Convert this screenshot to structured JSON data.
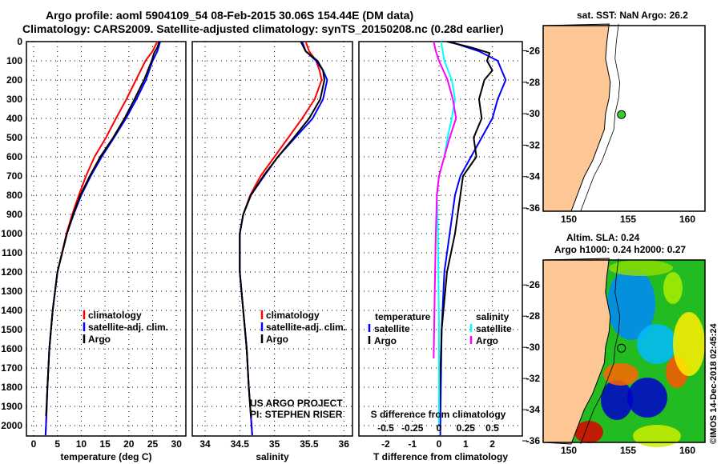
{
  "title": "Argo profile: aoml 5904109_54 08-Feb-2015 30.06S 154.44E (DM data)",
  "subtitle": "Climatology: CARS2009. Satellite-adjusted climatology: synTS_20150208.nc (0.28d earlier)",
  "colors": {
    "clim": "#ff0000",
    "sat": "#0000ff",
    "argo": "#000000",
    "s_sat": "#00ffff",
    "s_argo": "#ff00ff",
    "land": "#fdc896",
    "dot": "#33cc33"
  },
  "depth_ticks": [
    0,
    100,
    200,
    300,
    400,
    500,
    600,
    700,
    800,
    900,
    1000,
    1100,
    1200,
    1300,
    1400,
    1500,
    1600,
    1700,
    1800,
    1900,
    2000
  ],
  "chart_data": [
    {
      "type": "line",
      "name": "temperature",
      "xlabel": "temperature (deg C)",
      "ylabel": "depth",
      "xlim": [
        -1,
        32
      ],
      "ylim": [
        2050,
        0
      ],
      "xticks": [
        0,
        5,
        10,
        15,
        20,
        25,
        30
      ],
      "legend": [
        "climatology",
        "satellite-adj. clim.",
        "Argo"
      ],
      "series": [
        {
          "name": "climatology",
          "depth": [
            0,
            50,
            100,
            200,
            300,
            400,
            500,
            600,
            700,
            800,
            900,
            1000,
            1200,
            1400,
            1600,
            1800,
            2000,
            2050
          ],
          "values": [
            26,
            25,
            23.5,
            21.5,
            19.5,
            17.3,
            15.2,
            12.8,
            11,
            9.5,
            8.1,
            6.9,
            5,
            4,
            3.3,
            2.9,
            2.6,
            2.5
          ]
        },
        {
          "name": "satellite-adj. clim.",
          "depth": [
            0,
            50,
            100,
            200,
            300,
            400,
            500,
            600,
            700,
            800,
            900,
            1000,
            1200,
            1400,
            1600,
            1800,
            2000,
            2050
          ],
          "values": [
            26.6,
            26,
            25,
            23.6,
            21.6,
            19.4,
            16.9,
            14.3,
            12,
            10,
            8.4,
            7,
            5,
            4,
            3.3,
            2.9,
            2.6,
            2.5
          ]
        },
        {
          "name": "Argo",
          "depth": [
            0,
            30,
            60,
            100,
            150,
            200,
            300,
            400,
            500,
            600,
            700,
            800,
            900,
            1000,
            1200,
            1400,
            1600,
            1800,
            1950
          ],
          "values": [
            26.4,
            26,
            25.3,
            24.8,
            24,
            23.2,
            21.2,
            19.1,
            16.7,
            14,
            11.8,
            9.8,
            8.3,
            7,
            5,
            4,
            3.3,
            2.9,
            2.6
          ]
        }
      ]
    },
    {
      "type": "line",
      "name": "salinity",
      "xlabel": "salinity",
      "ylim": [
        2050,
        0
      ],
      "xlim": [
        33.8,
        36.1
      ],
      "xticks": [
        34,
        34.5,
        35,
        35.5,
        36
      ],
      "legend": [
        "climatology",
        "satellite-adj. clim.",
        "Argo"
      ],
      "annotation": [
        "US ARGO PROJECT",
        "PI: STEPHEN RISER"
      ],
      "series": [
        {
          "name": "climatology",
          "depth": [
            0,
            50,
            100,
            150,
            200,
            300,
            400,
            500,
            600,
            700,
            800,
            900,
            1000,
            1200,
            1400,
            1600,
            1800,
            2000,
            2050
          ],
          "values": [
            35.45,
            35.5,
            35.6,
            35.65,
            35.68,
            35.58,
            35.4,
            35.2,
            35,
            34.8,
            34.65,
            34.55,
            34.5,
            34.5,
            34.55,
            34.6,
            34.63,
            34.67,
            34.68
          ]
        },
        {
          "name": "satellite-adj. clim.",
          "depth": [
            0,
            50,
            100,
            150,
            200,
            300,
            400,
            500,
            600,
            700,
            800,
            900,
            1000,
            1200,
            1400,
            1600,
            1800,
            2000,
            2050
          ],
          "values": [
            35.4,
            35.45,
            35.6,
            35.7,
            35.76,
            35.7,
            35.55,
            35.3,
            35.05,
            34.85,
            34.66,
            34.55,
            34.5,
            34.5,
            34.55,
            34.6,
            34.63,
            34.67,
            34.68
          ]
        },
        {
          "name": "Argo",
          "depth": [
            0,
            50,
            100,
            150,
            200,
            300,
            400,
            500,
            600,
            700,
            800,
            900,
            1000,
            1200,
            1400,
            1600,
            1800,
            1950
          ],
          "values": [
            35.38,
            35.45,
            35.62,
            35.7,
            35.72,
            35.66,
            35.5,
            35.28,
            35.05,
            34.84,
            34.66,
            34.55,
            34.5,
            34.5,
            34.55,
            34.6,
            34.63,
            34.66
          ]
        }
      ]
    },
    {
      "type": "line",
      "name": "difference",
      "xlabel": "T difference from climatology",
      "xlabel2": "S difference from climatology",
      "xlim": [
        -3,
        3
      ],
      "ylim": [
        2050,
        0
      ],
      "xticks": [
        -2,
        -1,
        0,
        1,
        2
      ],
      "xticks2": [
        -0.5,
        -0.25,
        0,
        0.25,
        0.5
      ],
      "legend_t": [
        "temperature",
        "satellite",
        "Argo"
      ],
      "legend_s": [
        "salinity",
        "satellite",
        "Argo"
      ],
      "series": [
        {
          "name": "T satellite",
          "depth": [
            0,
            50,
            100,
            200,
            300,
            400,
            500,
            600,
            700,
            800,
            900,
            1000,
            1200,
            1500,
            2000,
            2050
          ],
          "values": [
            0.4,
            1.5,
            2.2,
            2.5,
            2.2,
            2.0,
            1.6,
            1.2,
            0.8,
            0.6,
            0.5,
            0.4,
            0.2,
            0.1,
            0.05,
            0.05
          ]
        },
        {
          "name": "T Argo",
          "depth": [
            0,
            30,
            60,
            100,
            150,
            200,
            300,
            400,
            500,
            600,
            700,
            800,
            900,
            1000,
            1200,
            1500,
            1950
          ],
          "values": [
            0.3,
            1.2,
            1.9,
            1.8,
            2.0,
            1.7,
            1.5,
            1.6,
            1.3,
            1.4,
            0.9,
            0.8,
            0.7,
            0.6,
            0.3,
            0.1,
            0.0
          ]
        },
        {
          "name": "S satellite",
          "depth": [
            0,
            100,
            200,
            300,
            400,
            500,
            600,
            700,
            800,
            1000,
            1500,
            2000
          ],
          "values": [
            0.02,
            0.05,
            0.12,
            0.15,
            0.12,
            0.08,
            0.05,
            0.0,
            -0.02,
            -0.01,
            0,
            0
          ]
        },
        {
          "name": "S Argo",
          "depth": [
            0,
            50,
            100,
            200,
            300,
            400,
            500,
            600,
            700,
            800,
            1000,
            1300,
            1650
          ],
          "values": [
            -0.05,
            -0.03,
            0.0,
            0.08,
            0.13,
            0.16,
            0.1,
            0.05,
            0.0,
            -0.02,
            -0.03,
            -0.04,
            -0.05
          ]
        }
      ]
    }
  ],
  "map1": {
    "title": "sat. SST: NaN Argo: 26.2",
    "lon_ticks": [
      150,
      155,
      160
    ],
    "lat_ticks": [
      -26,
      -28,
      -30,
      -32,
      -34,
      -36
    ],
    "argo_lon": 154.44,
    "argo_lat": -30.06
  },
  "map2": {
    "title1": "Altim. SLA: 0.24",
    "title2": "Argo h1000: 0.24 h2000: 0.27",
    "lon_ticks": [
      150,
      155,
      160
    ],
    "lat_ticks": [
      -26,
      -28,
      -30,
      -32,
      -34,
      -36
    ]
  },
  "credit": "©IMOS 14-Dec-2018 02:45:24"
}
